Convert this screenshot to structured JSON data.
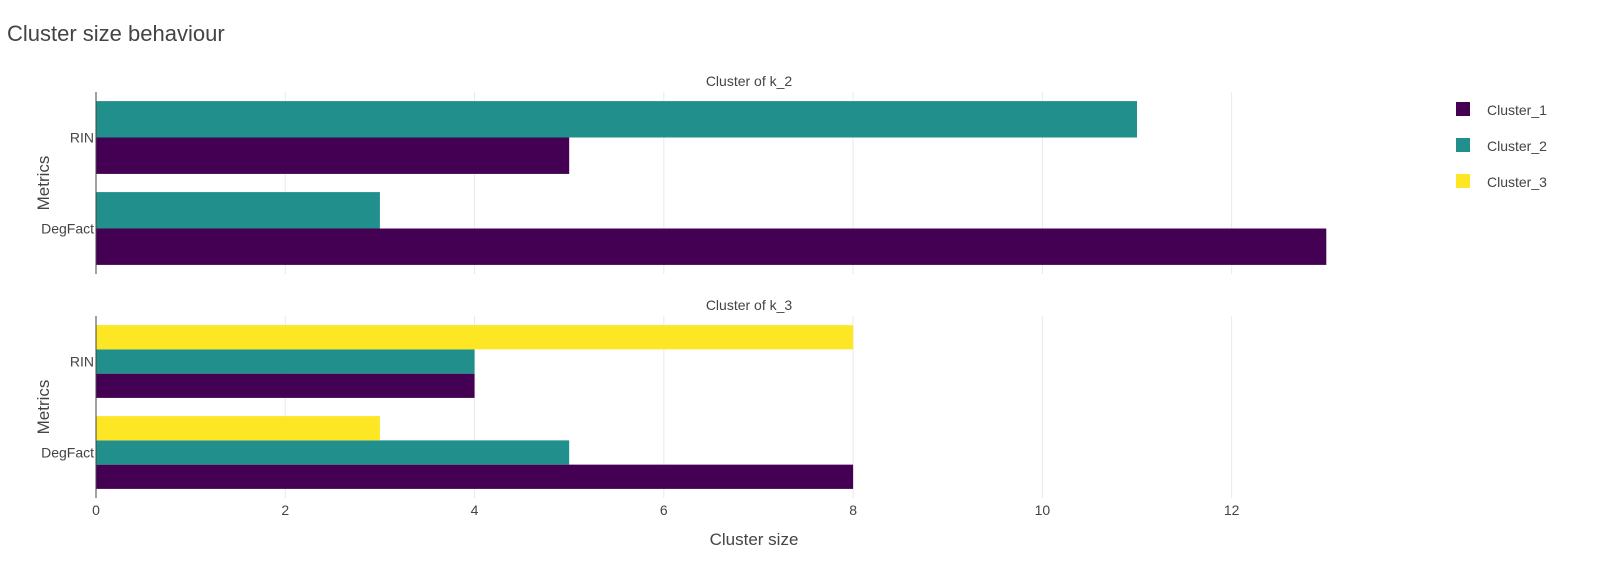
{
  "title": "Cluster size behaviour",
  "chart_data": {
    "type": "bar",
    "orientation": "horizontal",
    "title": "Cluster size behaviour",
    "xlabel": "Cluster size",
    "ylabel": "Metrics",
    "xlim": [
      0,
      13.8
    ],
    "xticks": [
      0,
      2,
      4,
      6,
      8,
      10,
      12
    ],
    "grid": true,
    "legend_position": "top-right",
    "legend": [
      {
        "name": "Cluster_1",
        "color": "#440154"
      },
      {
        "name": "Cluster_2",
        "color": "#21908d"
      },
      {
        "name": "Cluster_3",
        "color": "#fde725"
      }
    ],
    "panels": [
      {
        "title": "Cluster of k_2",
        "categories": [
          "RIN",
          "DegFact"
        ],
        "series": [
          {
            "name": "Cluster_1",
            "color": "#440154",
            "values": [
              5,
              13
            ]
          },
          {
            "name": "Cluster_2",
            "color": "#21908d",
            "values": [
              11,
              3
            ]
          }
        ]
      },
      {
        "title": "Cluster of k_3",
        "categories": [
          "RIN",
          "DegFact"
        ],
        "series": [
          {
            "name": "Cluster_1",
            "color": "#440154",
            "values": [
              4,
              8
            ]
          },
          {
            "name": "Cluster_2",
            "color": "#21908d",
            "values": [
              4,
              5
            ]
          },
          {
            "name": "Cluster_3",
            "color": "#fde725",
            "values": [
              8,
              3
            ]
          }
        ]
      }
    ]
  }
}
